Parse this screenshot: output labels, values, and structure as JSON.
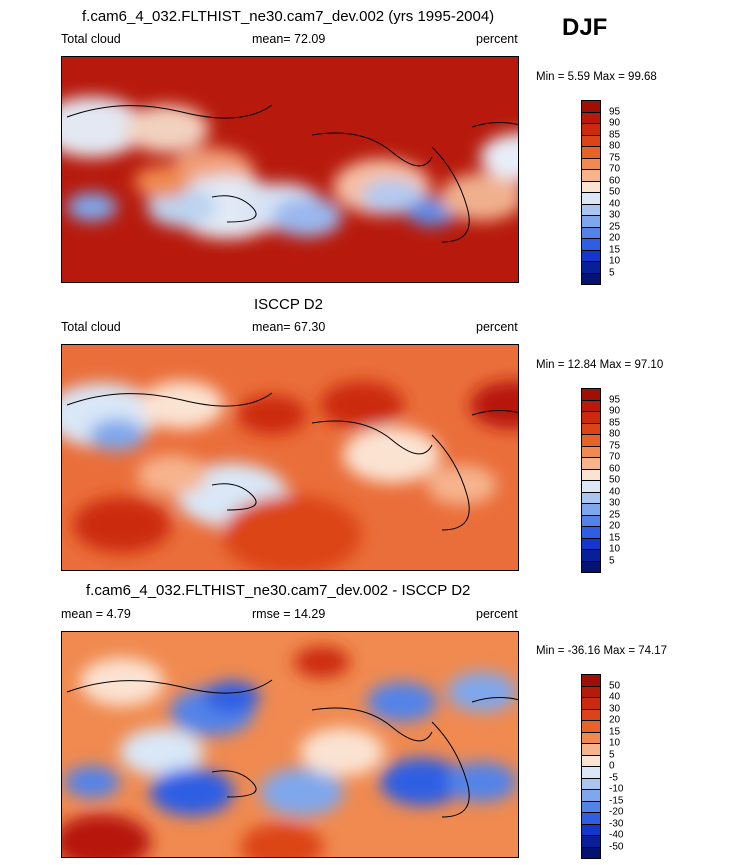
{
  "season": "DJF",
  "panels": [
    {
      "title": "f.cam6_4_032.FLTHIST_ne30.cam7_dev.002 (yrs 1995-2004)",
      "left": "Total cloud",
      "center": "mean=  72.09",
      "right": "percent",
      "minmax": "Min =   5.59 Max =  99.68",
      "levels": [
        "95",
        "90",
        "85",
        "80",
        "75",
        "70",
        "60",
        "50",
        "40",
        "30",
        "25",
        "20",
        "15",
        "10",
        "5"
      ],
      "colors": [
        "#9e0f05",
        "#b7190b",
        "#cc2a0f",
        "#dc4418",
        "#e86328",
        "#f08a50",
        "#f6b48e",
        "#fbe3d2",
        "#d9e7f7",
        "#a9c6f1",
        "#7fa7ec",
        "#5383e8",
        "#2f5ee3",
        "#1436cf",
        "#081f9a",
        "#061272"
      ],
      "base": "#b71a0c",
      "blobs": [
        {
          "x": 30,
          "y": 70,
          "r": 38,
          "c": "#e3e8f3"
        },
        {
          "x": 105,
          "y": 72,
          "r": 30,
          "c": "#f2d1c0"
        },
        {
          "x": 150,
          "y": 115,
          "r": 30,
          "c": "#f2a07a"
        },
        {
          "x": 165,
          "y": 150,
          "r": 40,
          "c": "#e2eaf5"
        },
        {
          "x": 120,
          "y": 150,
          "r": 25,
          "c": "#bcd3f0"
        },
        {
          "x": 220,
          "y": 150,
          "r": 30,
          "c": "#d8e3f5"
        },
        {
          "x": 245,
          "y": 160,
          "r": 25,
          "c": "#9ab8ef"
        },
        {
          "x": 320,
          "y": 130,
          "r": 35,
          "c": "#f6c0a4"
        },
        {
          "x": 330,
          "y": 140,
          "r": 22,
          "c": "#b4caf1"
        },
        {
          "x": 370,
          "y": 155,
          "r": 18,
          "c": "#5f8be6"
        },
        {
          "x": 420,
          "y": 140,
          "r": 30,
          "c": "#f0b08e"
        },
        {
          "x": 460,
          "y": 100,
          "r": 30,
          "c": "#e8eef8"
        },
        {
          "x": 30,
          "y": 150,
          "r": 18,
          "c": "#7fa7ec"
        },
        {
          "x": 100,
          "y": 125,
          "r": 20,
          "c": "#f08a50"
        }
      ],
      "coast": [
        "M5,60 Q60,40 120,55 T210,48",
        "M250,78 Q300,70 330,95 T370,100",
        "M370,90 Q395,115 405,150 T380,185",
        "M150,140 Q175,135 190,150 T165,165",
        "M410,70 Q440,60 470,72"
      ]
    },
    {
      "title": "ISCCP D2",
      "left": "Total cloud",
      "center": "mean=  67.30",
      "right": "percent",
      "minmax": "Min =  12.84 Max =  97.10",
      "levels": [
        "95",
        "90",
        "85",
        "80",
        "75",
        "70",
        "60",
        "50",
        "40",
        "30",
        "25",
        "20",
        "15",
        "10",
        "5"
      ],
      "colors": [
        "#9e0f05",
        "#b7190b",
        "#cc2a0f",
        "#dc4418",
        "#e86328",
        "#f08a50",
        "#f6b48e",
        "#fbe3d2",
        "#d9e7f7",
        "#a9c6f1",
        "#7fa7ec",
        "#5383e8",
        "#2f5ee3",
        "#1436cf",
        "#081f9a",
        "#061272"
      ],
      "base": "#ea6e3a",
      "blobs": [
        {
          "x": 40,
          "y": 70,
          "r": 40,
          "c": "#d9e7f7"
        },
        {
          "x": 55,
          "y": 90,
          "r": 20,
          "c": "#7fa7ec"
        },
        {
          "x": 120,
          "y": 60,
          "r": 30,
          "c": "#fbe3d2"
        },
        {
          "x": 210,
          "y": 70,
          "r": 25,
          "c": "#cc2a0f"
        },
        {
          "x": 300,
          "y": 60,
          "r": 30,
          "c": "#cc2a0f"
        },
        {
          "x": 330,
          "y": 110,
          "r": 35,
          "c": "#fbe3d2"
        },
        {
          "x": 170,
          "y": 150,
          "r": 40,
          "c": "#d9e7f7"
        },
        {
          "x": 110,
          "y": 130,
          "r": 25,
          "c": "#f6b48e"
        },
        {
          "x": 400,
          "y": 140,
          "r": 25,
          "c": "#f6b48e"
        },
        {
          "x": 450,
          "y": 60,
          "r": 30,
          "c": "#b7190b"
        },
        {
          "x": 230,
          "y": 190,
          "r": 50,
          "c": "#dc4418"
        },
        {
          "x": 60,
          "y": 180,
          "r": 35,
          "c": "#cc2a0f"
        }
      ],
      "coast": [
        "M5,60 Q60,40 120,55 T210,48",
        "M250,78 Q300,70 330,95 T370,100",
        "M370,90 Q395,115 405,150 T380,185",
        "M150,140 Q175,135 190,150 T165,165",
        "M410,70 Q440,60 470,72"
      ]
    },
    {
      "title": "f.cam6_4_032.FLTHIST_ne30.cam7_dev.002 - ISCCP D2",
      "left": "mean =   4.79",
      "center": "rmse =  14.29",
      "right": "percent",
      "minmax": "Min = -36.16 Max =  74.17",
      "levels": [
        "50",
        "40",
        "30",
        "20",
        "15",
        "10",
        "5",
        "0",
        "-5",
        "-10",
        "-15",
        "-20",
        "-30",
        "-40",
        "-50"
      ],
      "colors": [
        "#9e0f05",
        "#b7190b",
        "#cc2a0f",
        "#dc4418",
        "#e86328",
        "#f08a50",
        "#f6b48e",
        "#fbe3d2",
        "#d9e7f7",
        "#a9c6f1",
        "#7fa7ec",
        "#5383e8",
        "#2f5ee3",
        "#1436cf",
        "#081f9a",
        "#061272"
      ],
      "base": "#f08a50",
      "blobs": [
        {
          "x": 150,
          "y": 80,
          "r": 30,
          "c": "#5383e8"
        },
        {
          "x": 170,
          "y": 65,
          "r": 20,
          "c": "#2f5ee3"
        },
        {
          "x": 340,
          "y": 70,
          "r": 25,
          "c": "#5383e8"
        },
        {
          "x": 420,
          "y": 60,
          "r": 25,
          "c": "#7fa7ec"
        },
        {
          "x": 100,
          "y": 120,
          "r": 30,
          "c": "#d9e7f7"
        },
        {
          "x": 30,
          "y": 150,
          "r": 20,
          "c": "#5383e8"
        },
        {
          "x": 130,
          "y": 160,
          "r": 30,
          "c": "#2f5ee3"
        },
        {
          "x": 240,
          "y": 160,
          "r": 30,
          "c": "#7fa7ec"
        },
        {
          "x": 360,
          "y": 150,
          "r": 30,
          "c": "#2f5ee3"
        },
        {
          "x": 420,
          "y": 150,
          "r": 25,
          "c": "#5383e8"
        },
        {
          "x": 280,
          "y": 120,
          "r": 30,
          "c": "#fbe3d2"
        },
        {
          "x": 40,
          "y": 210,
          "r": 35,
          "c": "#b7190b"
        },
        {
          "x": 220,
          "y": 215,
          "r": 30,
          "c": "#dc4418"
        },
        {
          "x": 60,
          "y": 50,
          "r": 30,
          "c": "#fbe3d2"
        },
        {
          "x": 260,
          "y": 30,
          "r": 20,
          "c": "#cc2a0f"
        }
      ],
      "coast": [
        "M5,60 Q60,40 120,55 T210,48",
        "M250,78 Q300,70 330,95 T370,100",
        "M370,90 Q395,115 405,150 T380,185",
        "M150,140 Q175,135 190,150 T165,165",
        "M410,70 Q440,60 470,72"
      ]
    }
  ]
}
